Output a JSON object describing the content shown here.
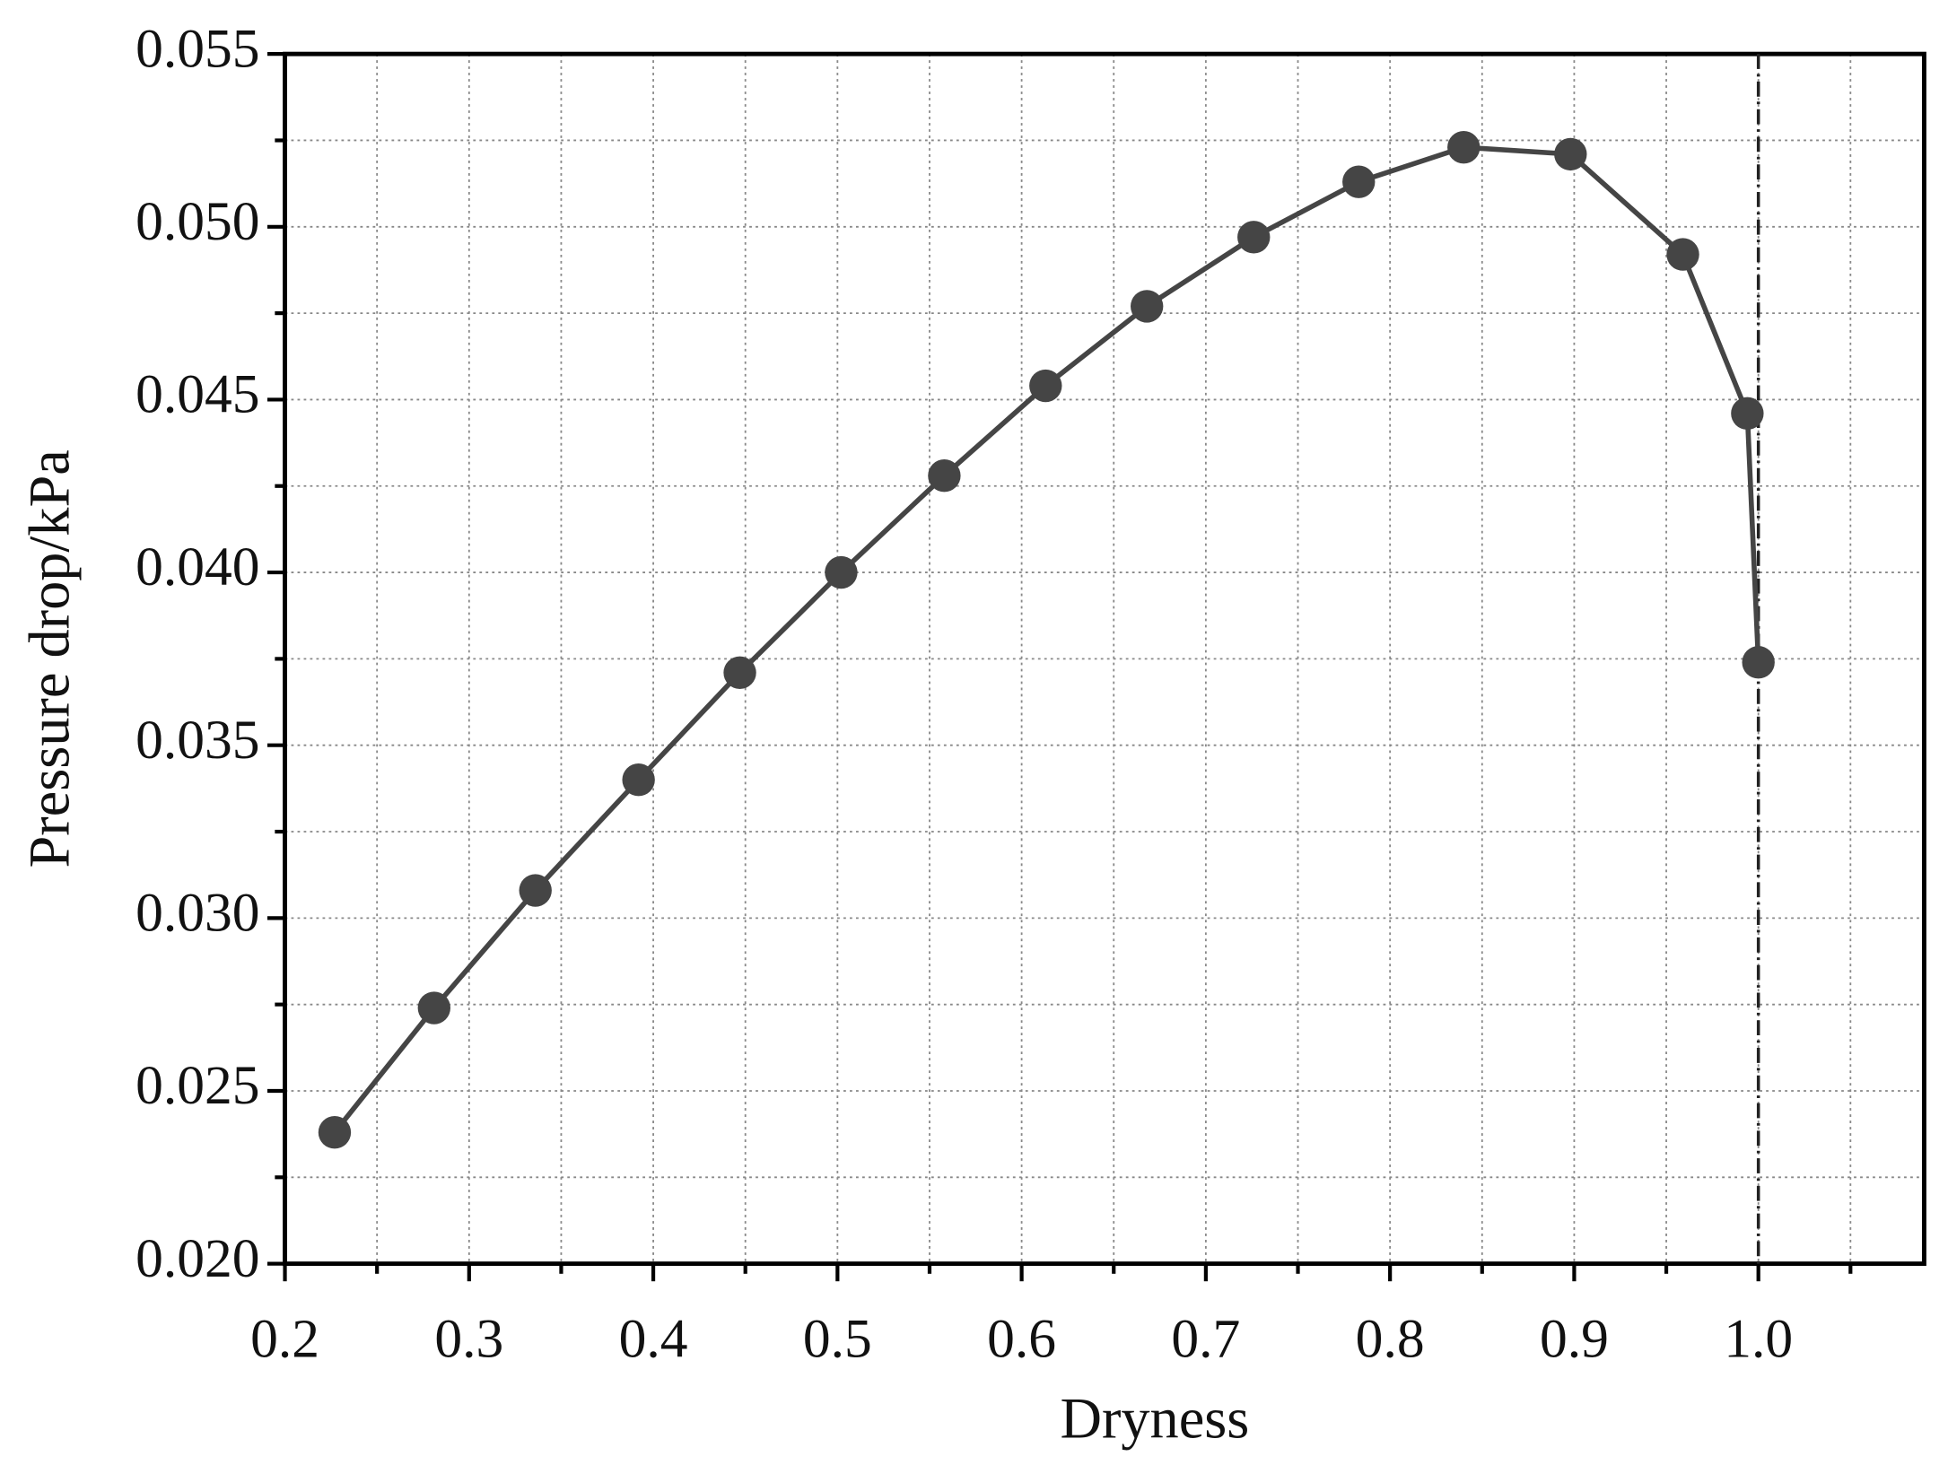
{
  "chart_data": {
    "type": "line",
    "x_label": "Dryness",
    "y_label": "Pressure drop/kPa",
    "series": [
      {
        "color": "#454545",
        "x": [
          0.227,
          0.281,
          0.336,
          0.392,
          0.447,
          0.502,
          0.558,
          0.613,
          0.668,
          0.726,
          0.783,
          0.84,
          0.898,
          0.959,
          0.994,
          1.0
        ],
        "values": [
          0.0238,
          0.0274,
          0.0308,
          0.034,
          0.0371,
          0.04,
          0.0428,
          0.0454,
          0.0477,
          0.0497,
          0.0513,
          0.0523,
          0.0521,
          0.0492,
          0.0446,
          0.0374
        ]
      }
    ],
    "xlim": [
      0.2,
      1.09
    ],
    "ylim": [
      0.02,
      0.055
    ],
    "xticks": [
      0.2,
      0.3,
      0.4,
      0.5,
      0.6,
      0.7,
      0.8,
      0.9,
      {
        "value": 1.0,
        "label": "1.0"
      }
    ],
    "yticks": [
      {
        "value": 0.02,
        "label": "0.020"
      },
      0.025,
      {
        "value": 0.03,
        "label": "0.030"
      },
      0.035,
      {
        "value": 0.04,
        "label": "0.040"
      },
      0.045,
      {
        "value": 0.05,
        "label": "0.050"
      },
      0.055
    ],
    "reference_line_x": 1.0,
    "grid": true,
    "minor_ticks": true
  }
}
